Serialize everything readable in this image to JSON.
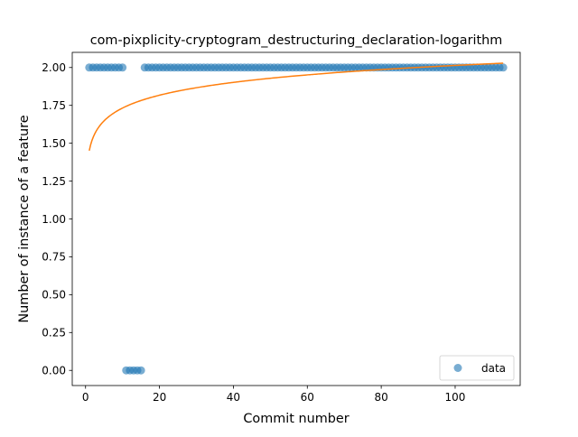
{
  "chart_data": {
    "type": "scatter",
    "title": "com-pixplicity-cryptogram_destructuring_declaration-logarithm",
    "xlabel": "Commit number",
    "ylabel": "Number of instance of a feature",
    "xlim": [
      -3.6,
      117.6
    ],
    "ylim": [
      -0.1,
      2.1
    ],
    "xticks": [
      0,
      20,
      40,
      60,
      80,
      100
    ],
    "yticks": [
      0.0,
      0.25,
      0.5,
      0.75,
      1.0,
      1.25,
      1.5,
      1.75,
      2.0
    ],
    "xtick_labels": [
      "0",
      "20",
      "40",
      "60",
      "80",
      "100"
    ],
    "ytick_labels": [
      "0.00",
      "0.25",
      "0.50",
      "0.75",
      "1.00",
      "1.25",
      "1.50",
      "1.75",
      "2.00"
    ],
    "grid": false,
    "legend": {
      "position": "lower-right",
      "entries": [
        {
          "label": "data",
          "marker": "circle",
          "color": "#1f77b4"
        }
      ]
    },
    "series": [
      {
        "name": "data",
        "kind": "points",
        "color": "#1f77b4",
        "points": [
          {
            "x_start": 1,
            "x_end": 10,
            "y": 2
          },
          {
            "x_start": 11,
            "x_end": 15,
            "y": 0
          },
          {
            "x_start": 16,
            "x_end": 113,
            "y": 2
          }
        ]
      },
      {
        "kind": "line",
        "color": "#ff7f0e",
        "fit": {
          "model": "a + b*ln(x)",
          "a": 1.451,
          "b": 0.1222
        },
        "x_range": [
          1,
          113
        ]
      }
    ]
  }
}
